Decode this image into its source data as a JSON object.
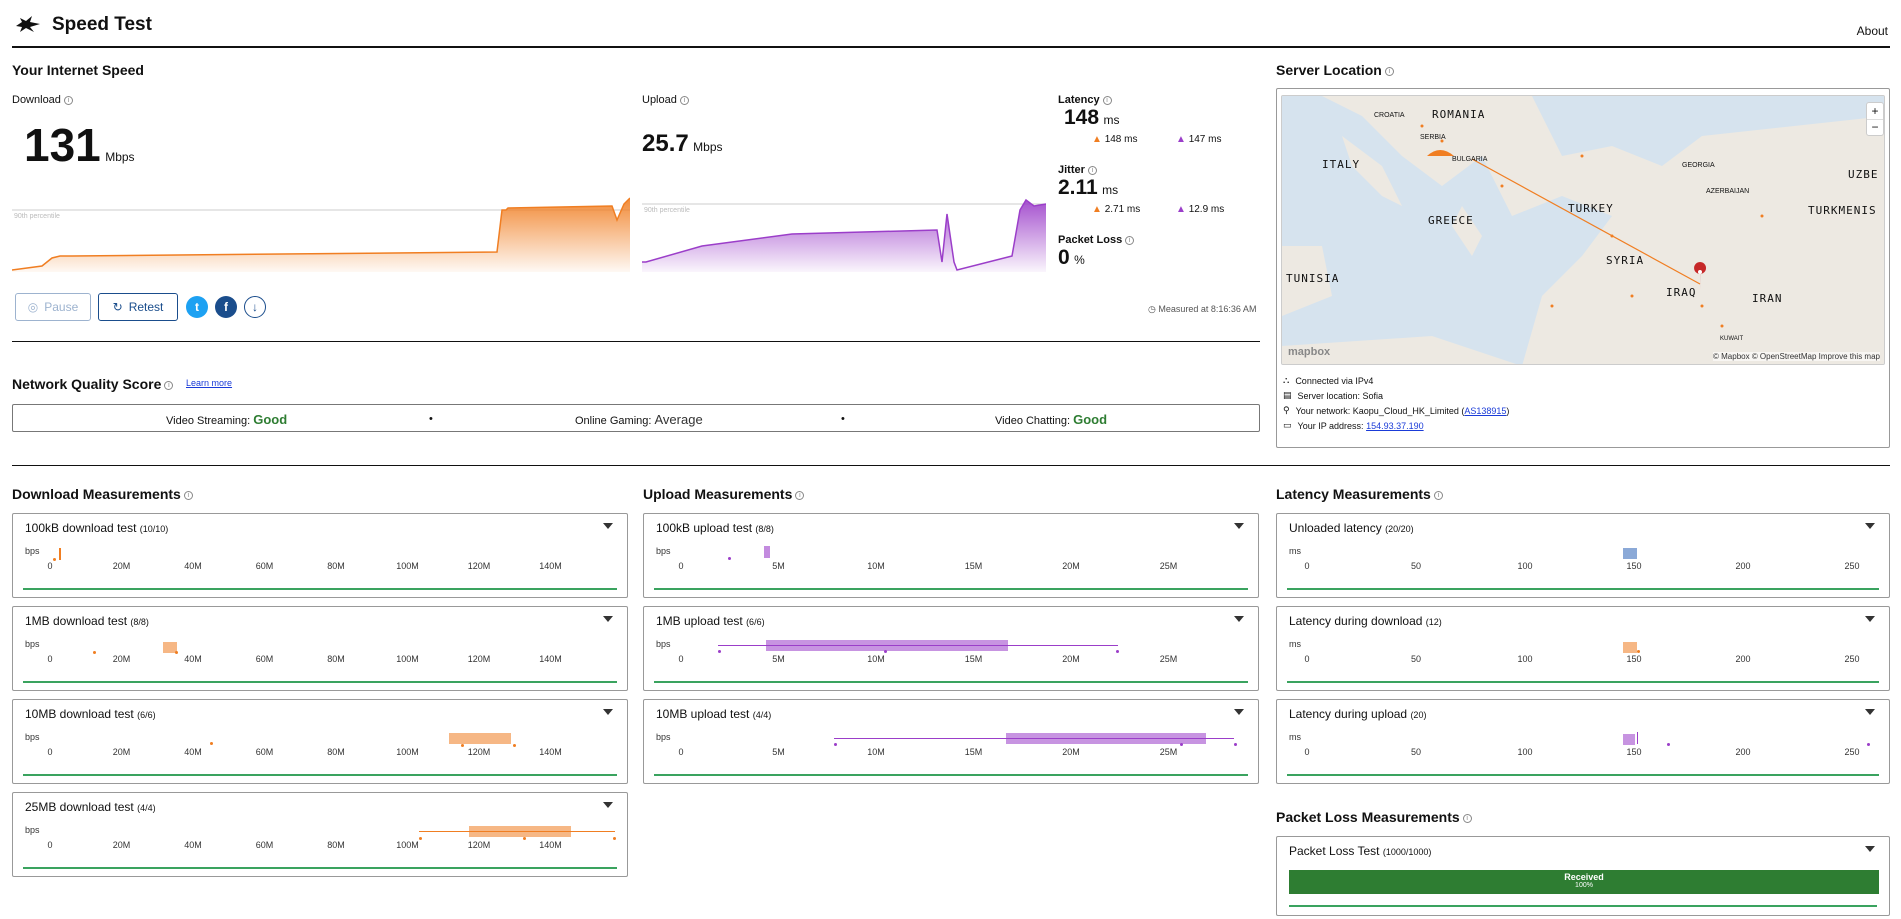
{
  "app": {
    "title": "Speed Test",
    "about": "About"
  },
  "speed": {
    "section_title": "Your Internet Speed",
    "download": {
      "label": "Download",
      "value": "131",
      "unit": "Mbps",
      "percentile": "90th percentile"
    },
    "upload": {
      "label": "Upload",
      "value": "25.7",
      "unit": "Mbps",
      "percentile": "90th percentile"
    },
    "latency": {
      "label": "Latency",
      "value": "148",
      "unit": "ms",
      "down": "148 ms",
      "up": "147 ms"
    },
    "jitter": {
      "label": "Jitter",
      "value": "2.11",
      "unit": "ms",
      "down": "2.71 ms",
      "up": "12.9 ms"
    },
    "packet_loss": {
      "label": "Packet Loss",
      "value": "0",
      "unit": "%"
    },
    "pause_label": "Pause",
    "retest_label": "Retest",
    "measured_at": "Measured at 8:16:36 AM"
  },
  "nqs": {
    "title": "Network Quality Score",
    "learn_more": "Learn more",
    "items": [
      {
        "label": "Video Streaming:",
        "value": "Good"
      },
      {
        "label": "Online Gaming:",
        "value": "Average"
      },
      {
        "label": "Video Chatting:",
        "value": "Good"
      }
    ]
  },
  "server": {
    "title": "Server Location",
    "connected": "Connected via IPv4",
    "location": "Server location: Sofia",
    "network_prefix": "Your network: Kaopu_Cloud_HK_Limited (",
    "network_as": "AS138915",
    "network_suffix": ")",
    "ip_prefix": "Your IP address: ",
    "ip": "154.93.37.190",
    "attribution": "© Mapbox © OpenStreetMap  Improve this map",
    "mapbox": "mapbox",
    "zoom_in": "+",
    "zoom_out": "−",
    "countries": [
      "ROMANIA",
      "ITALY",
      "GREECE",
      "TURKEY",
      "SYRIA",
      "IRAQ",
      "IRAN",
      "TUNISIA",
      "TURKMENIS",
      "UZBE",
      "GEORGIA",
      "CROATIA",
      "SERBIA",
      "BULGARIA",
      "KUWAIT",
      "AZERBAIJAN"
    ]
  },
  "measurements": {
    "download": {
      "title": "Download Measurements",
      "axis_unit": "bps",
      "ticks": [
        "0",
        "20M",
        "40M",
        "60M",
        "80M",
        "100M",
        "120M",
        "140M"
      ],
      "tests": [
        {
          "name": "100kB download test",
          "count": "(10/10)"
        },
        {
          "name": "1MB download test",
          "count": "(8/8)"
        },
        {
          "name": "10MB download test",
          "count": "(6/6)"
        },
        {
          "name": "25MB download test",
          "count": "(4/4)"
        }
      ]
    },
    "upload": {
      "title": "Upload Measurements",
      "axis_unit": "bps",
      "ticks": [
        "0",
        "5M",
        "10M",
        "15M",
        "20M",
        "25M"
      ],
      "tests": [
        {
          "name": "100kB upload test",
          "count": "(8/8)"
        },
        {
          "name": "1MB upload test",
          "count": "(6/6)"
        },
        {
          "name": "10MB upload test",
          "count": "(4/4)"
        }
      ]
    },
    "latency": {
      "title": "Latency Measurements",
      "axis_unit": "ms",
      "ticks": [
        "0",
        "50",
        "100",
        "150",
        "200",
        "250"
      ],
      "tests": [
        {
          "name": "Unloaded latency",
          "count": "(20/20)"
        },
        {
          "name": "Latency during download",
          "count": "(12)"
        },
        {
          "name": "Latency during upload",
          "count": "(20)"
        }
      ]
    },
    "packet_loss": {
      "title": "Packet Loss Measurements",
      "test_name": "Packet Loss Test",
      "count": "(1000/1000)",
      "received": "Received",
      "percent": "100%",
      "received_fraction": 1.0
    }
  },
  "colors": {
    "download": "#f07e22",
    "upload": "#9b3ec9",
    "latency_blue": "#2e64b8",
    "good": "#2e7d32",
    "brand": "#1a4d8c"
  }
}
